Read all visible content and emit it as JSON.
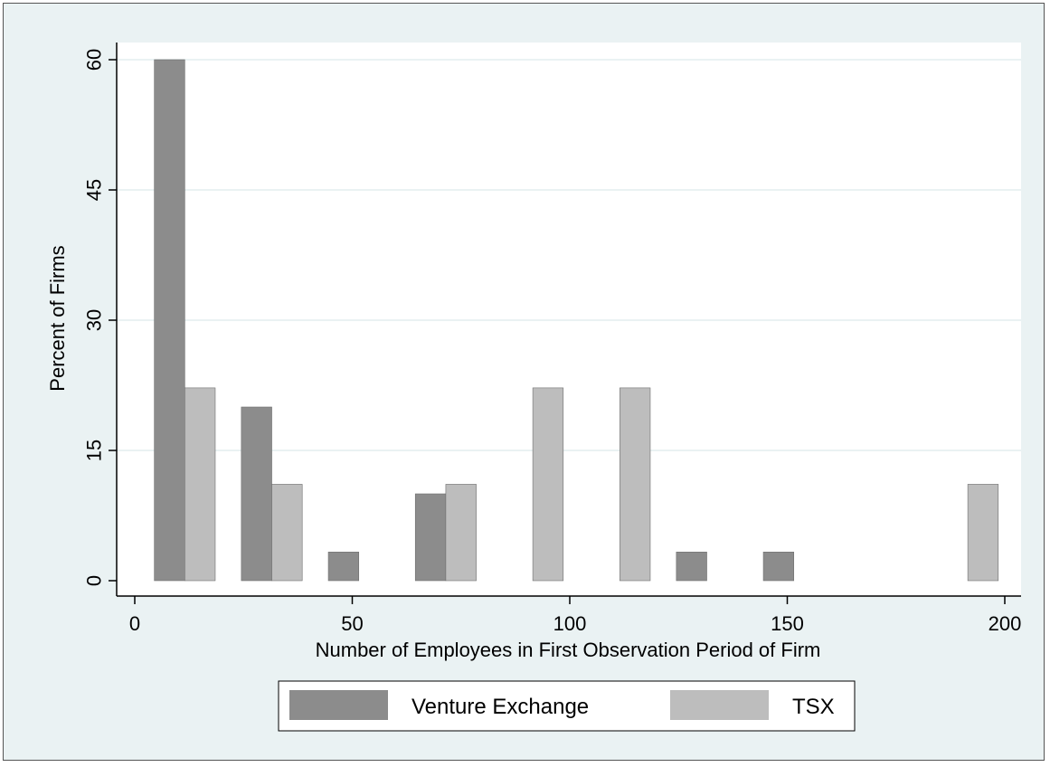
{
  "chart_data": {
    "type": "bar",
    "title": "",
    "xlabel": "Number of Employees in First Observation Period of Firm",
    "ylabel": "Percent of Firms",
    "xlim": [
      -4,
      204
    ],
    "ylim": [
      0,
      60
    ],
    "x_ticks": [
      0,
      50,
      100,
      150,
      200
    ],
    "x_tick_labels": [
      "0",
      "50",
      "100",
      "150",
      "200"
    ],
    "y_ticks": [
      0,
      15,
      30,
      45,
      60
    ],
    "y_tick_labels": [
      "0",
      "15",
      "30",
      "45",
      "60"
    ],
    "grid": true,
    "legend_position": "bottom",
    "bar_width": 7,
    "series": [
      {
        "name": "Venture Exchange",
        "color": "#8c8c8c",
        "points": [
          {
            "x": 4.5,
            "y": 60
          },
          {
            "x": 24.5,
            "y": 20
          },
          {
            "x": 44.5,
            "y": 3.3
          },
          {
            "x": 64.5,
            "y": 10
          },
          {
            "x": 124.5,
            "y": 3.3
          },
          {
            "x": 144.5,
            "y": 3.3
          }
        ]
      },
      {
        "name": "TSX",
        "color": "#bdbdbd",
        "points": [
          {
            "x": 11.5,
            "y": 22.2
          },
          {
            "x": 31.5,
            "y": 11.1
          },
          {
            "x": 71.5,
            "y": 11.1
          },
          {
            "x": 91.5,
            "y": 22.2
          },
          {
            "x": 111.5,
            "y": 22.2
          },
          {
            "x": 191.5,
            "y": 11.1
          }
        ]
      }
    ]
  },
  "colors": {
    "frame_background": "#eaf2f3",
    "plot_background": "#ffffff",
    "gridline": "#eaf2f3"
  }
}
